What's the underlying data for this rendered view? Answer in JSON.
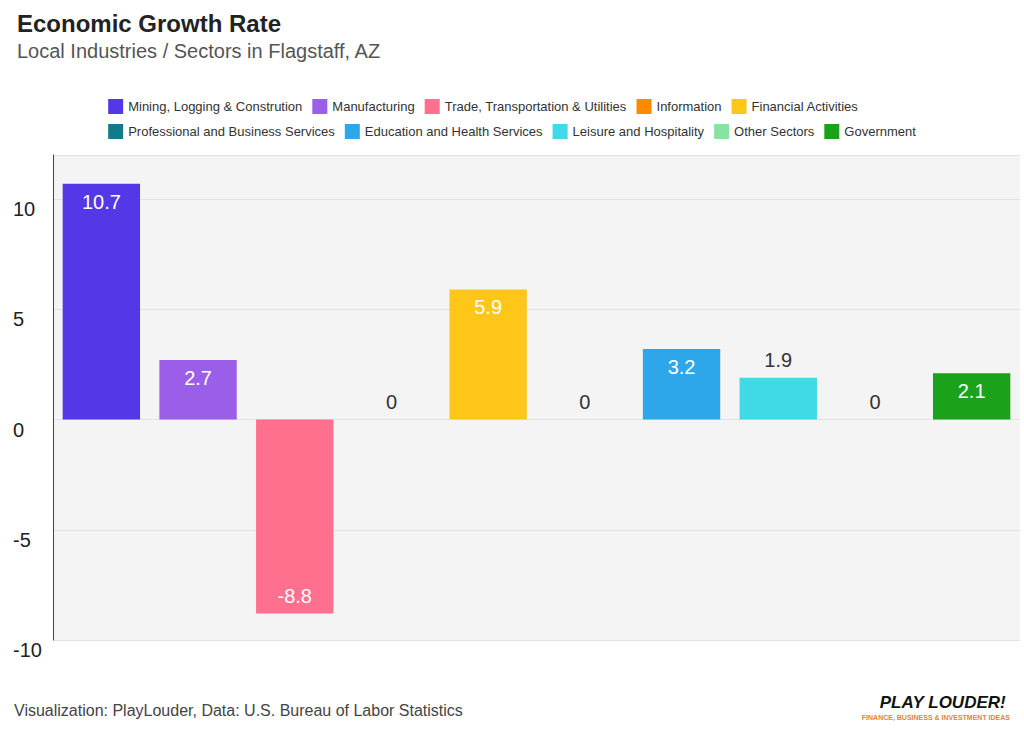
{
  "chart_data": {
    "type": "bar",
    "title": "Economic Growth Rate",
    "subtitle": "Local Industries / Sectors in Flagstaff, AZ",
    "categories": [
      "Mining, Logging & Constrution",
      "Manufacturing",
      "Trade, Transportation & Utilities",
      "Information",
      "Financial Activities",
      "Professional and Business Services",
      "Education and Health Services",
      "Leisure and Hospitality",
      "Other Sectors",
      "Government"
    ],
    "values": [
      10.7,
      2.7,
      -8.8,
      0,
      5.9,
      0,
      3.2,
      1.9,
      0,
      2.1
    ],
    "colors": [
      "#5438e8",
      "#9b5ee8",
      "#ff6f8e",
      "#ff8a00",
      "#ffc61a",
      "#117a8b",
      "#2ea7ea",
      "#40d9e6",
      "#86e4a0",
      "#1aa31a"
    ],
    "ylim": [
      -10,
      12
    ],
    "yticks": [
      -10,
      -5,
      0,
      5,
      10
    ],
    "grid": true,
    "legend": "top",
    "data_labels": true,
    "tick_labels": "y",
    "annotations": [
      "Visualization: PlayLouder, Data: U.S. Bureau of Labor Statistics",
      "PLAY LOUDER!",
      "FINANCE, BUSINESS & INVESTMENT IDEAS"
    ]
  }
}
